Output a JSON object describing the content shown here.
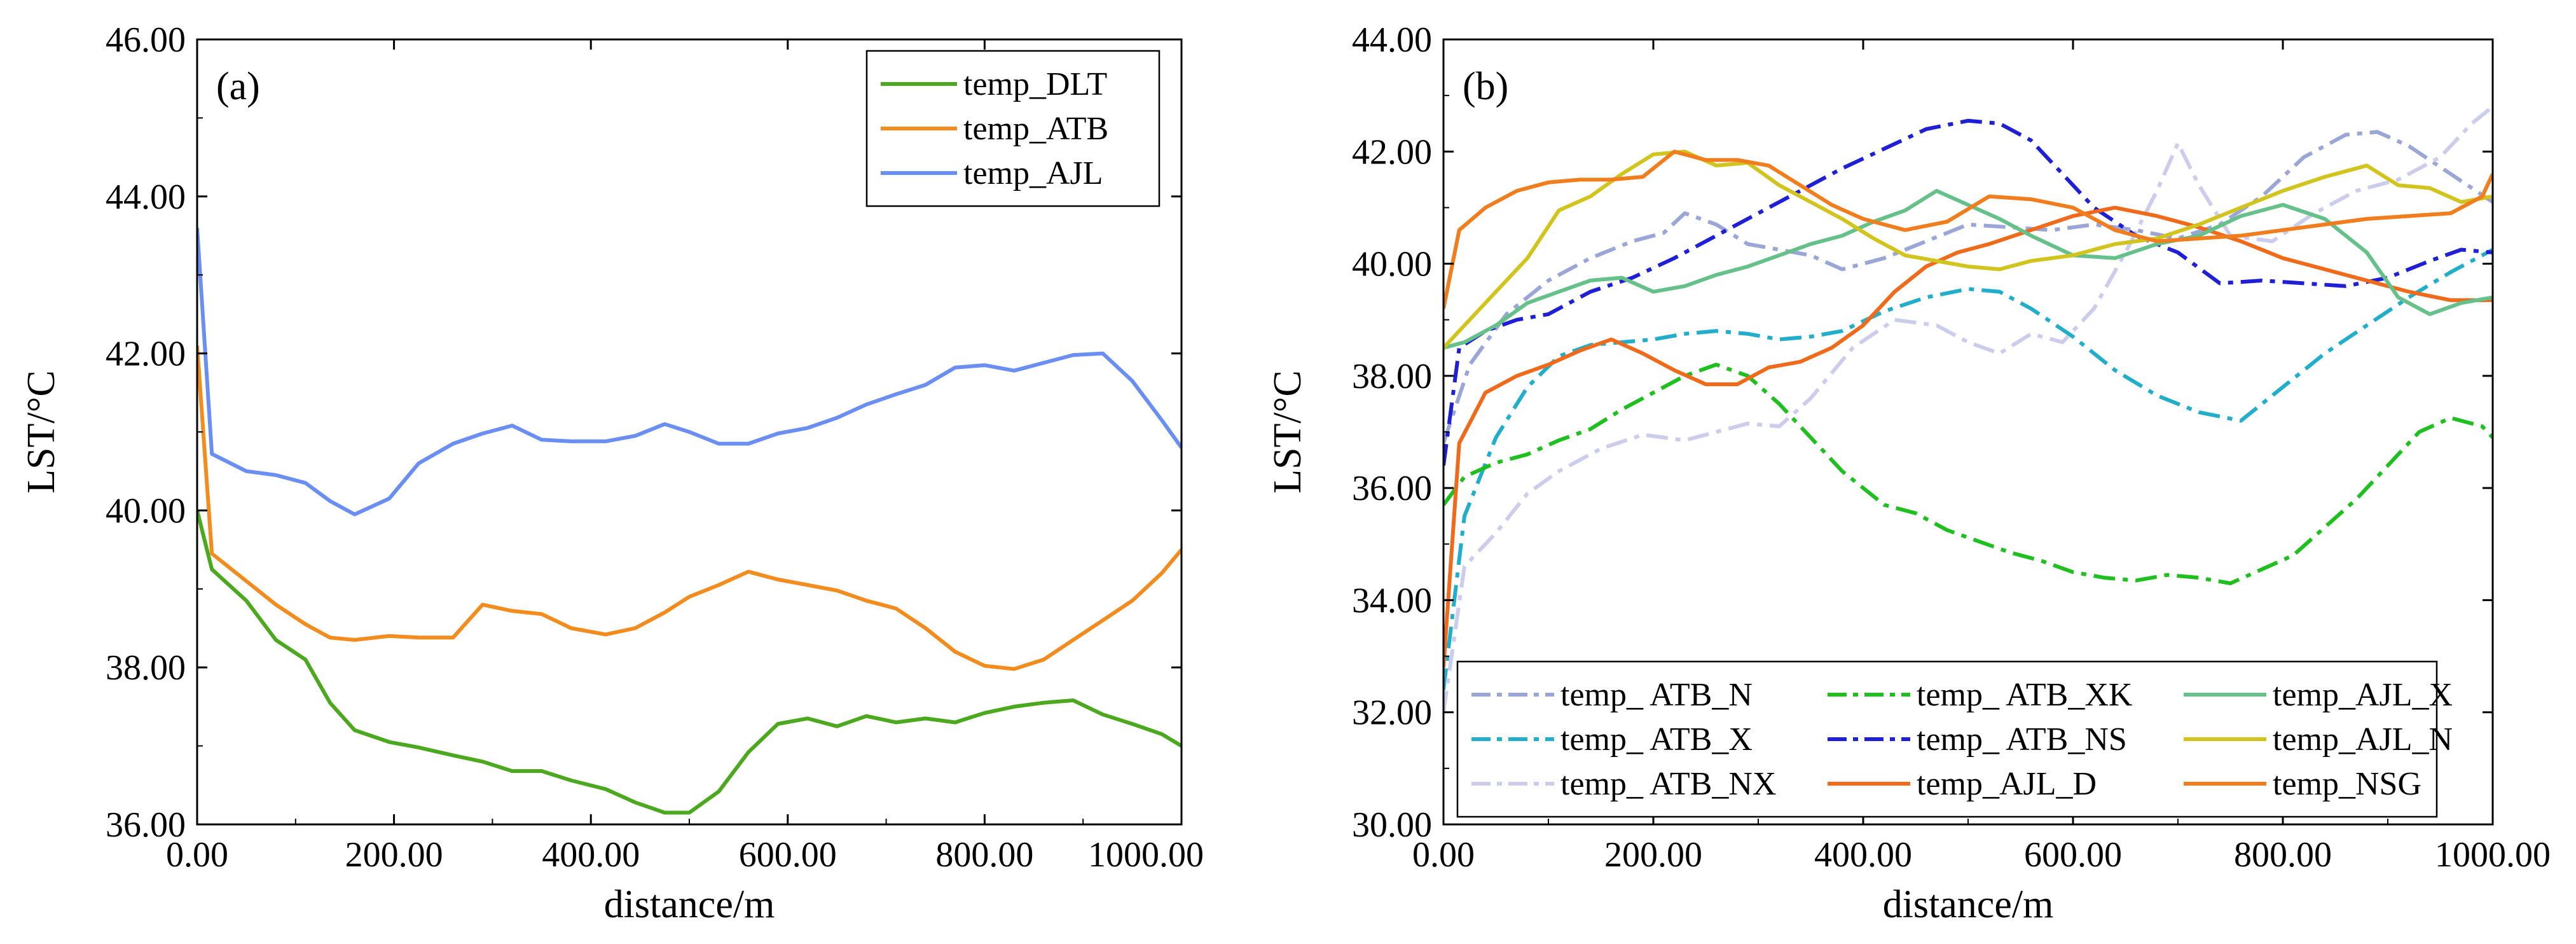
{
  "chart_data": [
    {
      "type": "line",
      "panel_label": "(a)",
      "xlabel": "distance/m",
      "ylabel": "LST/°C",
      "xlim": [
        0,
        1000
      ],
      "ylim": [
        36,
        46
      ],
      "xticks": [
        "0.00",
        "200.00",
        "400.00",
        "600.00",
        "800.00",
        "1000.00"
      ],
      "yticks": [
        "36.00",
        "38.00",
        "40.00",
        "42.00",
        "44.00",
        "46.00"
      ],
      "legend_position": "top-right",
      "series": [
        {
          "name": "temp_DLT",
          "color": "#4ca81e",
          "dash": "solid",
          "x": [
            0,
            15,
            50,
            80,
            110,
            135,
            160,
            195,
            225,
            260,
            290,
            320,
            350,
            380,
            415,
            445,
            475,
            500,
            530,
            560,
            590,
            620,
            650,
            680,
            710,
            740,
            770,
            800,
            830,
            860,
            890,
            920,
            950,
            980,
            1000
          ],
          "y": [
            40.0,
            39.25,
            38.85,
            38.35,
            38.1,
            37.55,
            37.2,
            37.05,
            36.98,
            36.88,
            36.8,
            36.68,
            36.68,
            36.56,
            36.45,
            36.28,
            36.15,
            36.15,
            36.42,
            36.92,
            37.28,
            37.35,
            37.25,
            37.38,
            37.3,
            37.35,
            37.3,
            37.42,
            37.5,
            37.55,
            37.58,
            37.4,
            37.28,
            37.15,
            37.0
          ]
        },
        {
          "name": "temp_ATB",
          "color": "#f28c1e",
          "dash": "solid",
          "x": [
            0,
            15,
            50,
            80,
            110,
            135,
            160,
            195,
            225,
            260,
            290,
            320,
            350,
            380,
            415,
            445,
            475,
            500,
            530,
            560,
            590,
            620,
            650,
            680,
            710,
            740,
            770,
            800,
            830,
            860,
            890,
            920,
            950,
            980,
            1000
          ],
          "y": [
            42.1,
            39.45,
            39.1,
            38.8,
            38.55,
            38.38,
            38.35,
            38.4,
            38.38,
            38.38,
            38.8,
            38.72,
            38.68,
            38.5,
            38.42,
            38.5,
            38.7,
            38.9,
            39.05,
            39.22,
            39.12,
            39.05,
            38.98,
            38.85,
            38.75,
            38.5,
            38.2,
            38.02,
            37.98,
            38.1,
            38.35,
            38.6,
            38.85,
            39.2,
            39.5
          ]
        },
        {
          "name": "temp_AJL",
          "color": "#6b8ef2",
          "dash": "solid",
          "x": [
            0,
            15,
            50,
            80,
            110,
            135,
            160,
            195,
            225,
            260,
            290,
            320,
            350,
            380,
            415,
            445,
            475,
            500,
            530,
            560,
            590,
            620,
            650,
            680,
            710,
            740,
            770,
            800,
            830,
            860,
            890,
            920,
            950,
            980,
            1000
          ],
          "y": [
            43.6,
            40.72,
            40.5,
            40.45,
            40.35,
            40.12,
            39.95,
            40.15,
            40.6,
            40.85,
            40.98,
            41.08,
            40.9,
            40.88,
            40.88,
            40.95,
            41.1,
            41.0,
            40.85,
            40.85,
            40.98,
            41.05,
            41.18,
            41.35,
            41.48,
            41.6,
            41.82,
            41.85,
            41.78,
            41.88,
            41.98,
            42.0,
            41.65,
            41.15,
            40.8
          ]
        }
      ]
    },
    {
      "type": "line",
      "panel_label": "(b)",
      "xlabel": "distance/m",
      "ylabel": "LST/°C",
      "xlim": [
        0,
        1000
      ],
      "ylim": [
        30,
        44
      ],
      "xticks": [
        "0.00",
        "200.00",
        "400.00",
        "600.00",
        "800.00",
        "1000.00"
      ],
      "yticks": [
        "30.00",
        "32.00",
        "34.00",
        "36.00",
        "38.00",
        "40.00",
        "42.00",
        "44.00"
      ],
      "legend_position": "bottom",
      "series": [
        {
          "name": "temp_ ATB_N",
          "color": "#9aa6d6",
          "dash": "dashdot",
          "x": [
            0,
            25,
            60,
            100,
            140,
            180,
            210,
            230,
            260,
            290,
            320,
            350,
            380,
            420,
            460,
            500,
            540,
            580,
            620,
            660,
            700,
            740,
            780,
            820,
            860,
            890,
            920,
            960,
            1000
          ],
          "y": [
            36.8,
            38.2,
            39.1,
            39.7,
            40.1,
            40.4,
            40.55,
            40.9,
            40.7,
            40.35,
            40.25,
            40.15,
            39.9,
            40.1,
            40.4,
            40.7,
            40.65,
            40.6,
            40.7,
            40.6,
            40.45,
            40.7,
            41.2,
            41.9,
            42.3,
            42.35,
            42.1,
            41.6,
            41.1
          ]
        },
        {
          "name": "temp_ ATB_X",
          "color": "#22aecb",
          "dash": "dashdot",
          "x": [
            0,
            20,
            50,
            80,
            110,
            140,
            170,
            200,
            230,
            260,
            290,
            320,
            350,
            380,
            420,
            460,
            500,
            530,
            560,
            600,
            640,
            680,
            720,
            760,
            800,
            840,
            880,
            920,
            960,
            1000
          ],
          "y": [
            32.4,
            35.5,
            36.9,
            37.8,
            38.35,
            38.55,
            38.6,
            38.65,
            38.75,
            38.8,
            38.75,
            38.65,
            38.7,
            38.8,
            39.15,
            39.4,
            39.55,
            39.5,
            39.2,
            38.7,
            38.1,
            37.65,
            37.35,
            37.2,
            37.8,
            38.4,
            38.9,
            39.4,
            39.85,
            40.25
          ]
        },
        {
          "name": "temp_ ATB_NX",
          "color": "#ccccec",
          "dash": "dashdot",
          "x": [
            0,
            20,
            50,
            80,
            110,
            150,
            190,
            230,
            260,
            290,
            320,
            350,
            390,
            430,
            470,
            500,
            530,
            560,
            590,
            620,
            650,
            680,
            700,
            720,
            750,
            790,
            830,
            870,
            910,
            950,
            980,
            1000
          ],
          "y": [
            32.0,
            34.6,
            35.2,
            35.9,
            36.3,
            36.7,
            36.95,
            36.85,
            37.0,
            37.15,
            37.1,
            37.6,
            38.5,
            39.0,
            38.9,
            38.6,
            38.4,
            38.75,
            38.6,
            39.2,
            40.2,
            41.3,
            42.15,
            41.4,
            40.5,
            40.4,
            40.9,
            41.3,
            41.5,
            41.9,
            42.5,
            42.8
          ]
        },
        {
          "name": "temp_ ATB_XK",
          "color": "#1fbf1f",
          "dash": "dashdot",
          "x": [
            0,
            20,
            50,
            80,
            110,
            140,
            170,
            200,
            230,
            260,
            290,
            320,
            350,
            380,
            420,
            450,
            480,
            510,
            540,
            570,
            600,
            630,
            660,
            690,
            720,
            750,
            780,
            810,
            840,
            870,
            900,
            930,
            960,
            990,
            1000
          ],
          "y": [
            35.7,
            36.2,
            36.45,
            36.6,
            36.85,
            37.05,
            37.4,
            37.7,
            38.0,
            38.2,
            38.0,
            37.5,
            36.9,
            36.3,
            35.7,
            35.55,
            35.25,
            35.05,
            34.85,
            34.7,
            34.5,
            34.4,
            34.35,
            34.45,
            34.4,
            34.3,
            34.55,
            34.8,
            35.3,
            35.8,
            36.4,
            37.0,
            37.25,
            37.1,
            36.9
          ]
        },
        {
          "name": "temp_ ATB_NS",
          "color": "#1f1fd6",
          "dash": "dashdot",
          "x": [
            0,
            15,
            40,
            70,
            100,
            140,
            180,
            220,
            260,
            300,
            340,
            380,
            420,
            460,
            500,
            530,
            560,
            590,
            620,
            660,
            700,
            740,
            780,
            820,
            860,
            900,
            940,
            970,
            1000
          ],
          "y": [
            36.4,
            38.5,
            38.8,
            39.0,
            39.1,
            39.5,
            39.75,
            40.1,
            40.5,
            40.9,
            41.3,
            41.7,
            42.05,
            42.4,
            42.55,
            42.5,
            42.2,
            41.6,
            41.0,
            40.5,
            40.2,
            39.65,
            39.7,
            39.65,
            39.6,
            39.75,
            40.05,
            40.25,
            40.2
          ]
        },
        {
          "name": "temp_AJL_D",
          "color": "#ef6a1a",
          "dash": "solid",
          "x": [
            0,
            15,
            40,
            70,
            100,
            130,
            160,
            190,
            220,
            250,
            280,
            310,
            340,
            370,
            400,
            430,
            460,
            490,
            520,
            560,
            600,
            640,
            680,
            720,
            760,
            800,
            840,
            880,
            920,
            960,
            1000
          ],
          "y": [
            32.8,
            36.8,
            37.7,
            38.0,
            38.2,
            38.45,
            38.65,
            38.4,
            38.1,
            37.85,
            37.85,
            38.15,
            38.25,
            38.5,
            38.9,
            39.5,
            39.95,
            40.2,
            40.35,
            40.6,
            40.85,
            41.0,
            40.85,
            40.65,
            40.4,
            40.1,
            39.9,
            39.7,
            39.5,
            39.35,
            39.35
          ]
        },
        {
          "name": "temp_AJL_X",
          "color": "#66c08a",
          "dash": "solid",
          "x": [
            0,
            20,
            50,
            80,
            110,
            140,
            170,
            200,
            230,
            260,
            290,
            320,
            350,
            380,
            410,
            440,
            470,
            500,
            530,
            560,
            600,
            640,
            680,
            720,
            760,
            800,
            840,
            880,
            910,
            940,
            970,
            1000
          ],
          "y": [
            38.5,
            38.6,
            38.9,
            39.3,
            39.5,
            39.7,
            39.75,
            39.5,
            39.6,
            39.8,
            39.95,
            40.15,
            40.35,
            40.5,
            40.75,
            40.95,
            41.3,
            41.05,
            40.8,
            40.5,
            40.15,
            40.1,
            40.35,
            40.5,
            40.85,
            41.05,
            40.8,
            40.2,
            39.4,
            39.1,
            39.3,
            39.4
          ]
        },
        {
          "name": "temp_AJL_N",
          "color": "#d2c41f",
          "dash": "solid",
          "x": [
            0,
            20,
            50,
            80,
            110,
            140,
            170,
            200,
            230,
            260,
            290,
            320,
            350,
            380,
            410,
            440,
            470,
            500,
            530,
            560,
            600,
            640,
            680,
            720,
            760,
            800,
            840,
            880,
            910,
            940,
            970,
            1000
          ],
          "y": [
            38.5,
            38.9,
            39.5,
            40.1,
            40.95,
            41.2,
            41.6,
            41.95,
            42.0,
            41.75,
            41.8,
            41.4,
            41.1,
            40.8,
            40.45,
            40.15,
            40.05,
            39.95,
            39.9,
            40.05,
            40.15,
            40.35,
            40.45,
            40.7,
            41.0,
            41.3,
            41.55,
            41.75,
            41.4,
            41.35,
            41.1,
            41.2
          ]
        },
        {
          "name": "temp_NSG",
          "color": "#f07d1e",
          "dash": "solid",
          "x": [
            0,
            15,
            40,
            70,
            100,
            130,
            160,
            190,
            220,
            250,
            280,
            310,
            340,
            370,
            400,
            440,
            480,
            520,
            560,
            600,
            640,
            680,
            720,
            760,
            800,
            840,
            880,
            920,
            960,
            990,
            1000
          ],
          "y": [
            39.2,
            40.6,
            41.0,
            41.3,
            41.45,
            41.5,
            41.5,
            41.55,
            42.0,
            41.85,
            41.85,
            41.75,
            41.4,
            41.05,
            40.8,
            40.6,
            40.75,
            41.2,
            41.15,
            41.0,
            40.6,
            40.4,
            40.45,
            40.5,
            40.6,
            40.7,
            40.8,
            40.85,
            40.9,
            41.2,
            41.6
          ]
        }
      ]
    }
  ]
}
